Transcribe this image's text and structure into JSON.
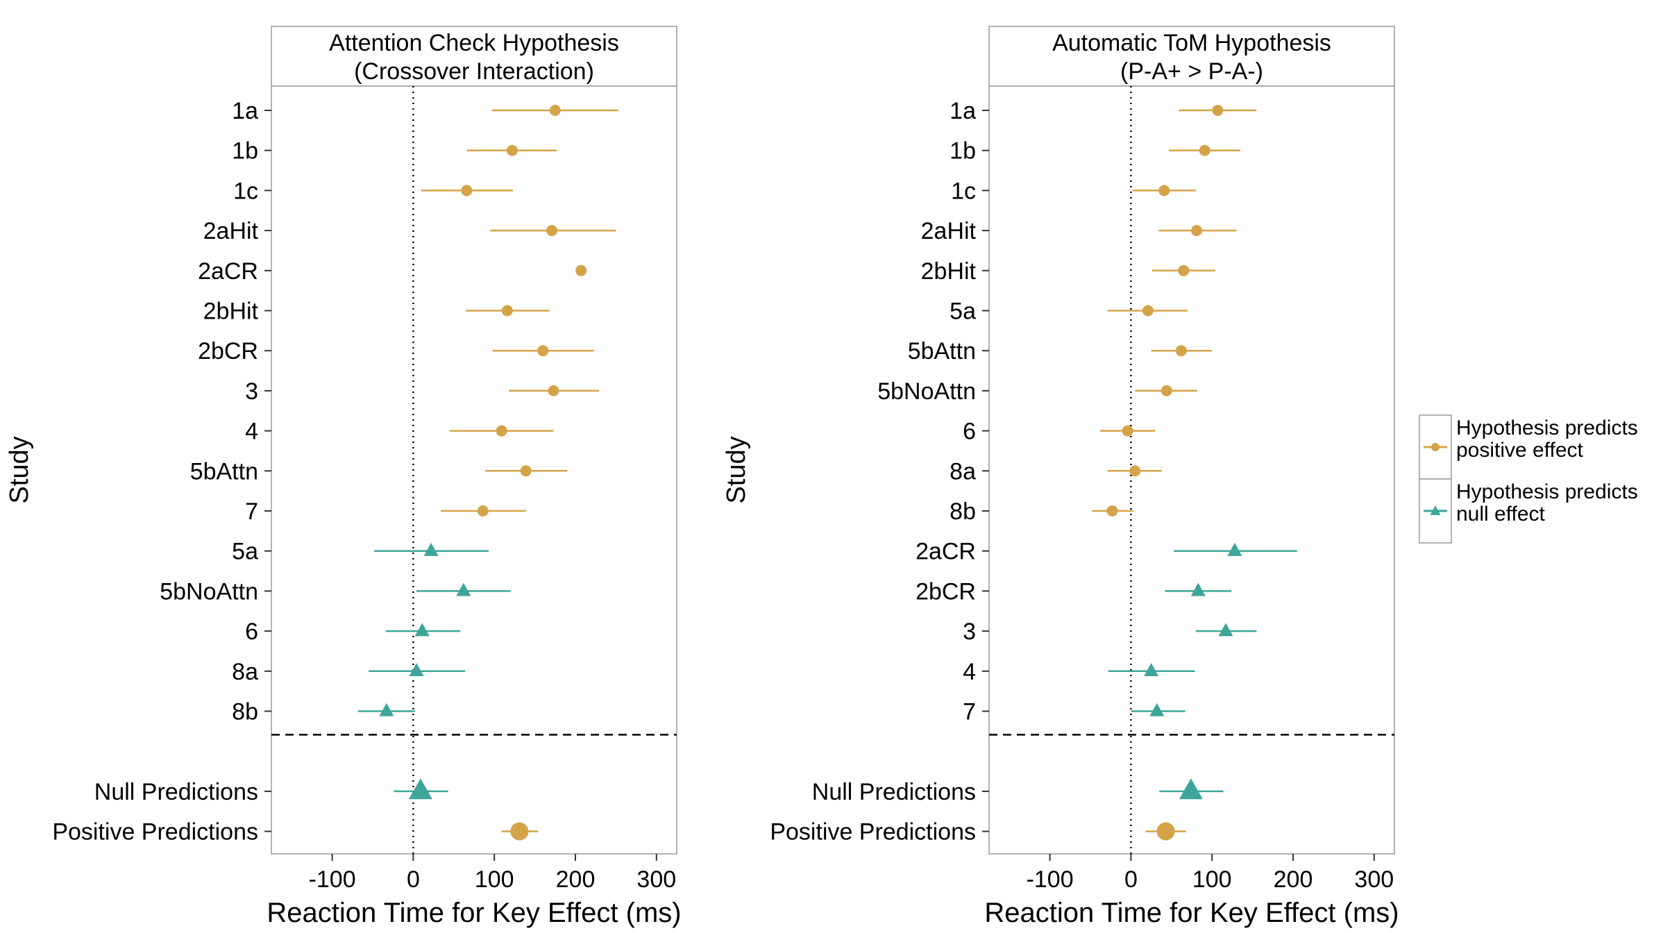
{
  "legend": {
    "items": [
      {
        "label_line1": "Hypothesis predicts",
        "label_line2": "positive effect",
        "color": "#D4A348",
        "shape": "circle"
      },
      {
        "label_line1": "Hypothesis predicts",
        "label_line2": "null effect",
        "color": "#3EA59A",
        "shape": "triangle"
      }
    ]
  },
  "colors": {
    "positive": "#D4A348",
    "null": "#3EA59A"
  },
  "chart_data": [
    {
      "type": "scatter",
      "title_line1": "Attention Check Hypothesis",
      "title_line2": "(Crossover Interaction)",
      "xlabel": "Reaction Time for Key Effect (ms)",
      "ylabel": "Study",
      "xlim": [
        -175,
        325
      ],
      "xticks": [
        -100,
        0,
        100,
        200,
        300
      ],
      "xtick_labels": [
        "-100",
        "0",
        "100",
        "200",
        "300"
      ],
      "reference_line_x": 0,
      "studies": [
        {
          "label": "1a",
          "est": 175,
          "lo": 97,
          "hi": 253,
          "type": "positive"
        },
        {
          "label": "1b",
          "est": 122,
          "lo": 66,
          "hi": 177,
          "type": "positive"
        },
        {
          "label": "1c",
          "est": 66,
          "lo": 10,
          "hi": 123,
          "type": "positive"
        },
        {
          "label": "2aHit",
          "est": 171,
          "lo": 95,
          "hi": 250,
          "type": "positive"
        },
        {
          "label": "2aCR",
          "est": 207,
          "lo": 207,
          "hi": 207,
          "type": "positive"
        },
        {
          "label": "2bHit",
          "est": 116,
          "lo": 65,
          "hi": 168,
          "type": "positive"
        },
        {
          "label": "2bCR",
          "est": 160,
          "lo": 98,
          "hi": 223,
          "type": "positive"
        },
        {
          "label": "3",
          "est": 173,
          "lo": 118,
          "hi": 229,
          "type": "positive"
        },
        {
          "label": "4",
          "est": 109,
          "lo": 45,
          "hi": 173,
          "type": "positive"
        },
        {
          "label": "5bAttn",
          "est": 139,
          "lo": 89,
          "hi": 190,
          "type": "positive"
        },
        {
          "label": "7",
          "est": 86,
          "lo": 34,
          "hi": 139,
          "type": "positive"
        },
        {
          "label": "5a",
          "est": 22,
          "lo": -48,
          "hi": 93,
          "type": "null"
        },
        {
          "label": "5bNoAttn",
          "est": 62,
          "lo": 4,
          "hi": 120,
          "type": "null"
        },
        {
          "label": "6",
          "est": 11,
          "lo": -34,
          "hi": 58,
          "type": "null"
        },
        {
          "label": "8a",
          "est": 4,
          "lo": -55,
          "hi": 64,
          "type": "null"
        },
        {
          "label": "8b",
          "est": -33,
          "lo": -68,
          "hi": 2,
          "type": "null"
        }
      ],
      "summary": [
        {
          "label": "Null Predictions",
          "est": 9,
          "lo": -24,
          "hi": 43,
          "type": "null"
        },
        {
          "label": "Positive Predictions",
          "est": 131,
          "lo": 109,
          "hi": 154,
          "type": "positive"
        }
      ]
    },
    {
      "type": "scatter",
      "title_line1": "Automatic ToM Hypothesis",
      "title_line2": "(P-A+ > P-A-)",
      "xlabel": "Reaction Time for Key Effect (ms)",
      "ylabel": "Study",
      "xlim": [
        -175,
        325
      ],
      "xticks": [
        -100,
        0,
        100,
        200,
        300
      ],
      "xtick_labels": [
        "-100",
        "0",
        "100",
        "200",
        "300"
      ],
      "reference_line_x": 0,
      "studies": [
        {
          "label": "1a",
          "est": 107,
          "lo": 59,
          "hi": 155,
          "type": "positive"
        },
        {
          "label": "1b",
          "est": 91,
          "lo": 47,
          "hi": 135,
          "type": "positive"
        },
        {
          "label": "1c",
          "est": 41,
          "lo": 2,
          "hi": 80,
          "type": "positive"
        },
        {
          "label": "2aHit",
          "est": 81,
          "lo": 34,
          "hi": 130,
          "type": "positive"
        },
        {
          "label": "2bHit",
          "est": 65,
          "lo": 26,
          "hi": 104,
          "type": "positive"
        },
        {
          "label": "5a",
          "est": 21,
          "lo": -29,
          "hi": 70,
          "type": "positive"
        },
        {
          "label": "5bAttn",
          "est": 62,
          "lo": 25,
          "hi": 100,
          "type": "positive"
        },
        {
          "label": "5bNoAttn",
          "est": 44,
          "lo": 5,
          "hi": 82,
          "type": "positive"
        },
        {
          "label": "6",
          "est": -4,
          "lo": -38,
          "hi": 30,
          "type": "positive"
        },
        {
          "label": "8a",
          "est": 5,
          "lo": -29,
          "hi": 38,
          "type": "positive"
        },
        {
          "label": "8b",
          "est": -23,
          "lo": -48,
          "hi": 3,
          "type": "positive"
        },
        {
          "label": "2aCR",
          "est": 128,
          "lo": 53,
          "hi": 205,
          "type": "null"
        },
        {
          "label": "2bCR",
          "est": 83,
          "lo": 42,
          "hi": 124,
          "type": "null"
        },
        {
          "label": "3",
          "est": 117,
          "lo": 80,
          "hi": 155,
          "type": "null"
        },
        {
          "label": "4",
          "est": 25,
          "lo": -28,
          "hi": 79,
          "type": "null"
        },
        {
          "label": "7",
          "est": 32,
          "lo": 0,
          "hi": 67,
          "type": "null"
        }
      ],
      "summary": [
        {
          "label": "Null Predictions",
          "est": 74,
          "lo": 35,
          "hi": 114,
          "type": "null"
        },
        {
          "label": "Positive Predictions",
          "est": 43,
          "lo": 18,
          "hi": 68,
          "type": "positive"
        }
      ]
    }
  ]
}
